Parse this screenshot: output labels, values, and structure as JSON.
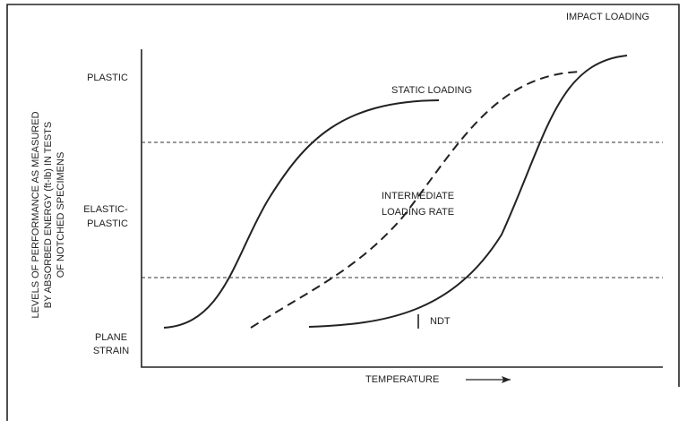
{
  "y_axis_label": [
    "LEVELS OF PERFORMANCE AS MEASURED",
    "BY ABSORBED ENERGY (ft-lb) IN TESTS",
    "OF NOTCHED SPECIMENS"
  ],
  "levels": {
    "plastic": "PLASTIC",
    "elastic_plastic": [
      "ELASTIC-",
      "PLASTIC"
    ],
    "plane_strain": [
      "PLANE",
      "STRAIN"
    ]
  },
  "curves": {
    "static": "STATIC LOADING",
    "intermediate": [
      "INTERMEDIATE",
      "LOADING RATE"
    ],
    "impact": "IMPACT LOADING",
    "ndt": "NDT"
  },
  "x_axis_label": "TEMPERATURE"
}
